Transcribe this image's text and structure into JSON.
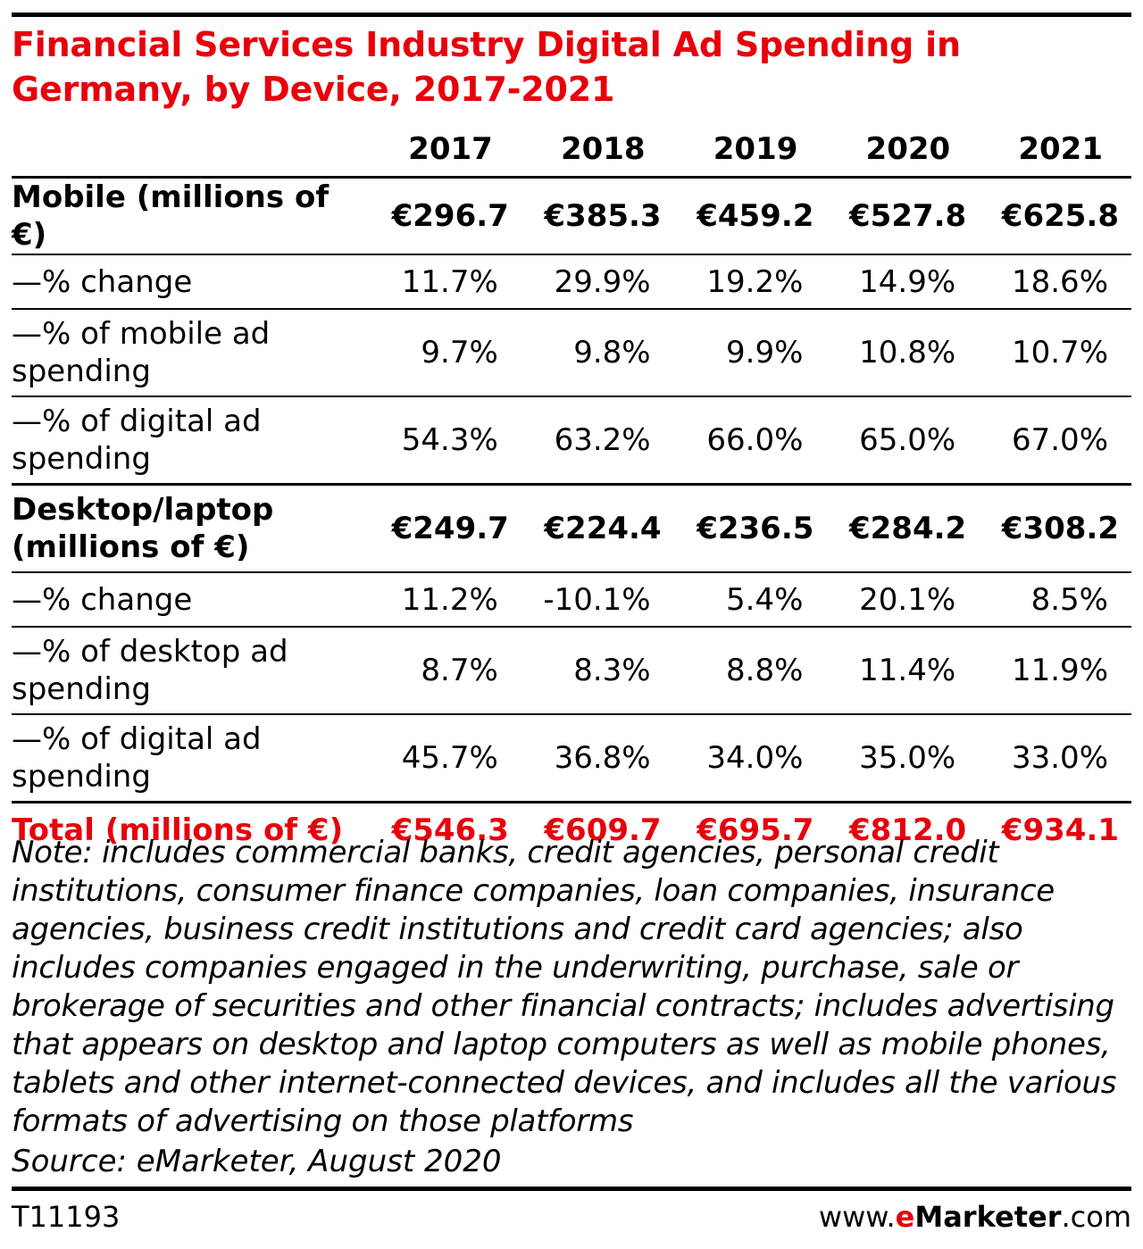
{
  "chart_data": {
    "type": "table",
    "title": "Financial Services Industry Digital Ad Spending in Germany, by Device, 2017-2021",
    "columns": [
      "2017",
      "2018",
      "2019",
      "2020",
      "2021"
    ],
    "rows": [
      {
        "label": "Mobile (millions of €)",
        "values": [
          "€296.7",
          "€385.3",
          "€459.2",
          "€527.8",
          "€625.8"
        ],
        "style": "main"
      },
      {
        "label": "—% change",
        "values": [
          "11.7%",
          "29.9%",
          "19.2%",
          "14.9%",
          "18.6%"
        ],
        "style": "sub"
      },
      {
        "label": "—% of mobile ad spending",
        "values": [
          "9.7%",
          "9.8%",
          "9.9%",
          "10.8%",
          "10.7%"
        ],
        "style": "sub"
      },
      {
        "label": "—% of digital ad spending",
        "values": [
          "54.3%",
          "63.2%",
          "66.0%",
          "65.0%",
          "67.0%"
        ],
        "style": "sub"
      },
      {
        "label": "Desktop/laptop (millions of €)",
        "values": [
          "€249.7",
          "€224.4",
          "€236.5",
          "€284.2",
          "€308.2"
        ],
        "style": "main"
      },
      {
        "label": "—% change",
        "values": [
          "11.2%",
          "-10.1%",
          "5.4%",
          "20.1%",
          "8.5%"
        ],
        "style": "sub"
      },
      {
        "label": "—% of desktop ad spending",
        "values": [
          "8.7%",
          "8.3%",
          "8.8%",
          "11.4%",
          "11.9%"
        ],
        "style": "sub"
      },
      {
        "label": "—% of digital ad spending",
        "values": [
          "45.7%",
          "36.8%",
          "34.0%",
          "35.0%",
          "33.0%"
        ],
        "style": "sub"
      },
      {
        "label": "Total (millions of €)",
        "values": [
          "€546.3",
          "€609.7",
          "€695.7",
          "€812.0",
          "€934.1"
        ],
        "style": "total"
      }
    ],
    "note": "Note: includes commercial banks, credit agencies, personal credit institutions, consumer finance companies, loan companies, insurance agencies, business credit institutions and credit card agencies; also includes companies engaged in the underwriting, purchase, sale or brokerage of securities and other financial contracts; includes advertising that appears on desktop and laptop computers as well as mobile phones, tablets and other internet-connected devices, and includes all the various formats of advertising on those platforms",
    "source": "Source: eMarketer, August 2020"
  },
  "footer": {
    "chart_id": "T11193",
    "brand_prefix": "www.",
    "brand_e": "e",
    "brand_name": "Marketer",
    "brand_suffix": ".com"
  },
  "colors": {
    "accent": "#e8000b",
    "text": "#000000"
  }
}
